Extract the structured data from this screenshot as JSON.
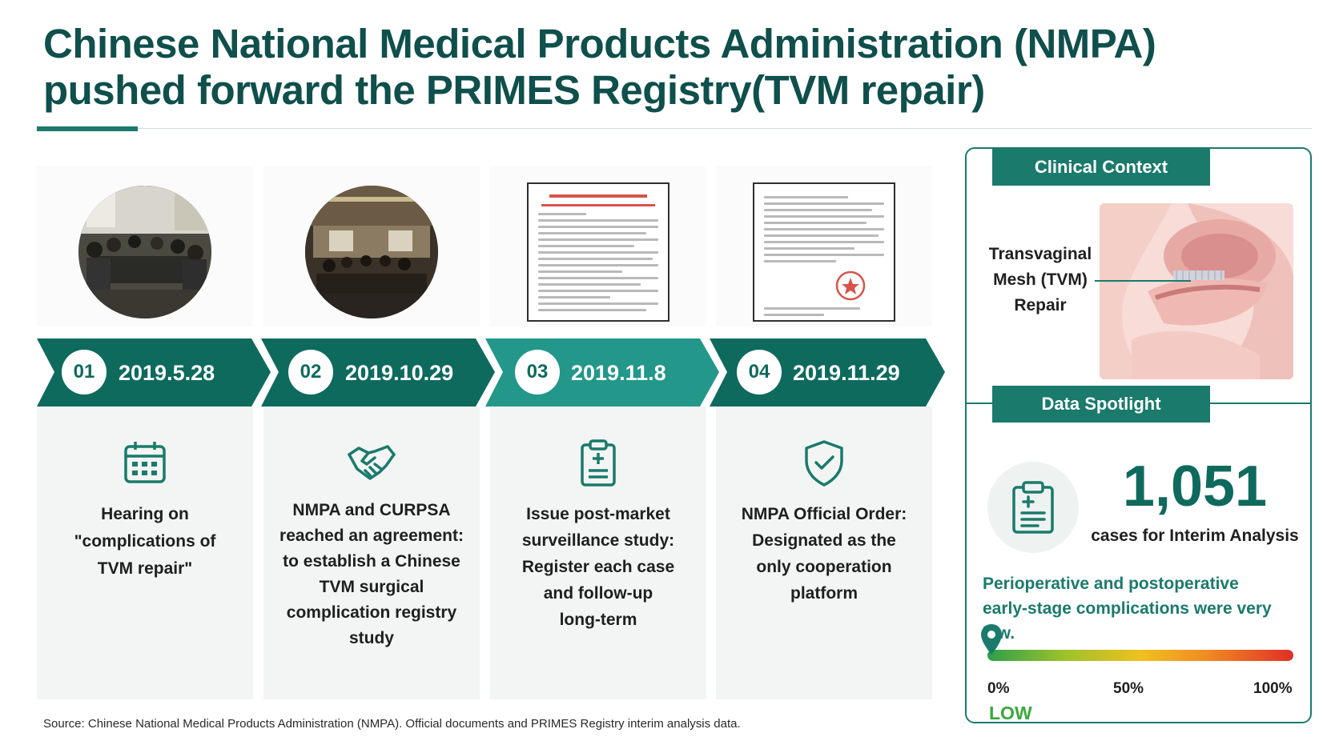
{
  "title": {
    "line1": "Chinese National Medical Products Administration (NMPA)",
    "line2": "pushed forward the PRIMES Registry(TVM repair)"
  },
  "timeline": [
    {
      "num": "01",
      "date": "2019.5.28",
      "icon": "calendar-icon",
      "text_lines": [
        "Hearing on",
        "\"complications of",
        "TVM repair\""
      ]
    },
    {
      "num": "02",
      "date": "2019.10.29",
      "icon": "handshake-icon",
      "text_lines": [
        "NMPA and CURPSA",
        "reached an agreement:",
        "to establish a Chinese",
        "TVM surgical",
        "complication registry",
        "study"
      ]
    },
    {
      "num": "03",
      "date": "2019.11.8",
      "icon": "medical-clipboard-icon",
      "text_lines": [
        "Issue post-market",
        "surveillance study:",
        "Register each case",
        "and follow-up",
        "long-term"
      ]
    },
    {
      "num": "04",
      "date": "2019.11.29",
      "icon": "shield-check-icon",
      "text_lines": [
        "NMPA Official Order:",
        "Designated as the",
        "only cooperation",
        "platform"
      ]
    }
  ],
  "clinical_context": {
    "tab_label": "Clinical Context",
    "label_lines": [
      "Transvaginal",
      "Mesh (TVM)",
      "Repair"
    ]
  },
  "data_spotlight": {
    "tab_label": "Data Spotlight",
    "icon": "clipboard-list-icon",
    "value": "1,051",
    "caption": "cases for Interim Analysis",
    "note_lines": [
      "Perioperative and postoperative",
      "early-stage complications were very low."
    ],
    "scale": {
      "ticks": [
        "0%",
        "50%",
        "100%"
      ],
      "marker_level": 0,
      "marker_label": "LOW"
    }
  },
  "colors": {
    "primary": "#0f4f4c",
    "accent": "#1a7a6c",
    "arrow_light": "#23978a",
    "low": "#3aa83d",
    "card_bg": "#f2f5f3"
  },
  "source": "Source: Chinese National Medical Products Administration (NMPA). Official documents and PRIMES Registry interim analysis data."
}
